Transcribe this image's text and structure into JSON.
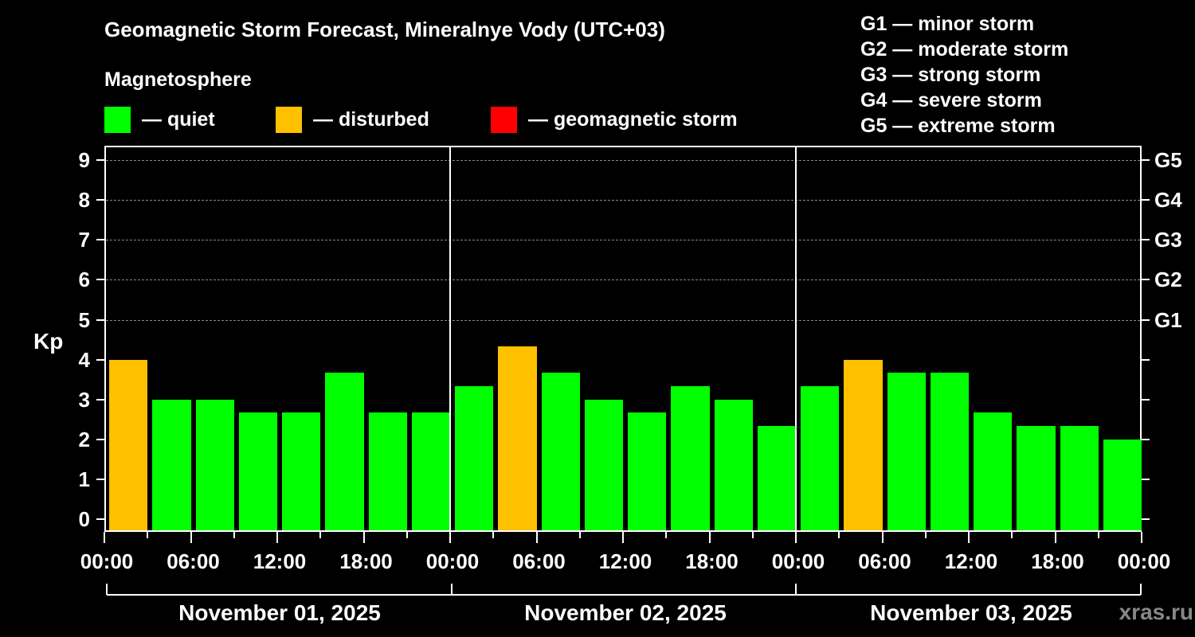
{
  "title": "Geomagnetic Storm Forecast, Mineralnye Vody (UTC+03)",
  "legend": {
    "heading": "Magnetosphere",
    "items": [
      {
        "label": "— quiet",
        "color": "#00ff00"
      },
      {
        "label": "— disturbed",
        "color": "#ffc000"
      },
      {
        "label": "— geomagnetic storm",
        "color": "#ff0000"
      }
    ]
  },
  "g_scale": [
    "G1 — minor storm",
    "G2 — moderate storm",
    "G3 — strong storm",
    "G4 — severe storm",
    "G5 — extreme storm"
  ],
  "axis": {
    "ylabel": "Kp",
    "yticks": [
      "0",
      "1",
      "2",
      "3",
      "4",
      "5",
      "6",
      "7",
      "8",
      "9"
    ],
    "right_labels": [
      {
        "kp": 5,
        "label": "G1"
      },
      {
        "kp": 6,
        "label": "G2"
      },
      {
        "kp": 7,
        "label": "G3"
      },
      {
        "kp": 8,
        "label": "G4"
      },
      {
        "kp": 9,
        "label": "G5"
      }
    ],
    "xticks": [
      "00:00",
      "06:00",
      "12:00",
      "18:00",
      "00:00",
      "06:00",
      "12:00",
      "18:00",
      "00:00",
      "06:00",
      "12:00",
      "18:00",
      "00:00"
    ],
    "dates": [
      "November 01, 2025",
      "November 02, 2025",
      "November 03, 2025"
    ]
  },
  "brand": "xras.ru",
  "chart_data": {
    "type": "bar",
    "title": "Geomagnetic Storm Forecast, Mineralnye Vody (UTC+03)",
    "xlabel": "",
    "ylabel": "Kp",
    "ylim": [
      0,
      9
    ],
    "grid": true,
    "legend_position": "top",
    "categories": [
      "Nov 01 00:00",
      "Nov 01 03:00",
      "Nov 01 06:00",
      "Nov 01 09:00",
      "Nov 01 12:00",
      "Nov 01 15:00",
      "Nov 01 18:00",
      "Nov 01 21:00",
      "Nov 02 00:00",
      "Nov 02 03:00",
      "Nov 02 06:00",
      "Nov 02 09:00",
      "Nov 02 12:00",
      "Nov 02 15:00",
      "Nov 02 18:00",
      "Nov 02 21:00",
      "Nov 03 00:00",
      "Nov 03 03:00",
      "Nov 03 06:00",
      "Nov 03 09:00",
      "Nov 03 12:00",
      "Nov 03 15:00",
      "Nov 03 18:00",
      "Nov 03 21:00"
    ],
    "values": [
      4.0,
      3.0,
      3.0,
      2.67,
      2.67,
      3.67,
      2.67,
      2.67,
      3.33,
      4.33,
      3.67,
      3.0,
      2.67,
      3.33,
      3.0,
      2.33,
      3.33,
      4.0,
      3.67,
      3.67,
      2.67,
      2.33,
      2.33,
      2.0
    ],
    "status": [
      "disturbed",
      "quiet",
      "quiet",
      "quiet",
      "quiet",
      "quiet",
      "quiet",
      "quiet",
      "quiet",
      "disturbed",
      "quiet",
      "quiet",
      "quiet",
      "quiet",
      "quiet",
      "quiet",
      "quiet",
      "disturbed",
      "quiet",
      "quiet",
      "quiet",
      "quiet",
      "quiet",
      "quiet"
    ],
    "colors": {
      "quiet": "#00ff00",
      "disturbed": "#ffc000",
      "storm": "#ff0000"
    },
    "right_axis_labels": {
      "5": "G1",
      "6": "G2",
      "7": "G3",
      "8": "G4",
      "9": "G5"
    }
  }
}
